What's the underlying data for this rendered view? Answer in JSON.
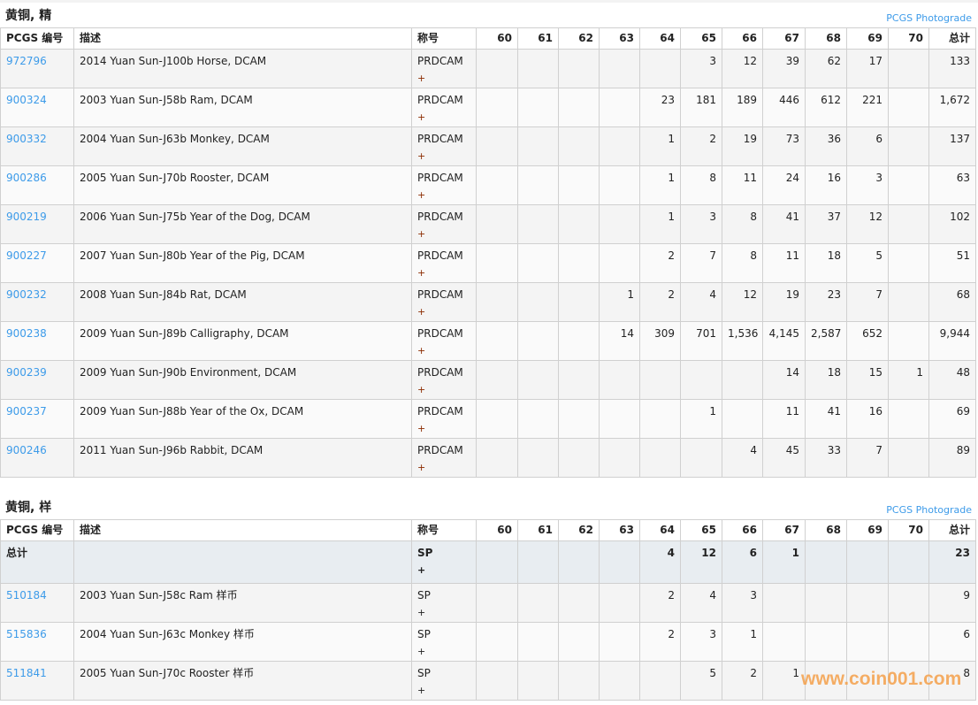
{
  "columns": {
    "pcgs": "PCGS 编号",
    "desc": "描述",
    "desig": "称号",
    "grades": [
      "60",
      "61",
      "62",
      "63",
      "64",
      "65",
      "66",
      "67",
      "68",
      "69",
      "70"
    ],
    "total": "总计"
  },
  "photograde_label": "PCGS Photograde",
  "sections": [
    {
      "title": "黄铜, 精",
      "rows": [
        {
          "pcgs": "972796",
          "desc": "2014 Yuan Sun-J100b Horse, DCAM",
          "desig": "PRDCAM",
          "plus": "+",
          "grades": [
            "",
            "",
            "",
            "",
            "",
            "3",
            "12",
            "39",
            "62",
            "17",
            ""
          ],
          "total": "133"
        },
        {
          "pcgs": "900324",
          "desc": "2003 Yuan Sun-J58b Ram, DCAM",
          "desig": "PRDCAM",
          "plus": "+",
          "grades": [
            "",
            "",
            "",
            "",
            "23",
            "181",
            "189",
            "446",
            "612",
            "221",
            ""
          ],
          "total": "1,672"
        },
        {
          "pcgs": "900332",
          "desc": "2004 Yuan Sun-J63b Monkey, DCAM",
          "desig": "PRDCAM",
          "plus": "+",
          "grades": [
            "",
            "",
            "",
            "",
            "1",
            "2",
            "19",
            "73",
            "36",
            "6",
            ""
          ],
          "total": "137"
        },
        {
          "pcgs": "900286",
          "desc": "2005 Yuan Sun-J70b Rooster, DCAM",
          "desig": "PRDCAM",
          "plus": "+",
          "grades": [
            "",
            "",
            "",
            "",
            "1",
            "8",
            "11",
            "24",
            "16",
            "3",
            ""
          ],
          "total": "63"
        },
        {
          "pcgs": "900219",
          "desc": "2006 Yuan Sun-J75b Year of the Dog, DCAM",
          "desig": "PRDCAM",
          "plus": "+",
          "grades": [
            "",
            "",
            "",
            "",
            "1",
            "3",
            "8",
            "41",
            "37",
            "12",
            ""
          ],
          "total": "102"
        },
        {
          "pcgs": "900227",
          "desc": "2007 Yuan Sun-J80b Year of the Pig, DCAM",
          "desig": "PRDCAM",
          "plus": "+",
          "grades": [
            "",
            "",
            "",
            "",
            "2",
            "7",
            "8",
            "11",
            "18",
            "5",
            ""
          ],
          "total": "51"
        },
        {
          "pcgs": "900232",
          "desc": "2008 Yuan Sun-J84b Rat, DCAM",
          "desig": "PRDCAM",
          "plus": "+",
          "grades": [
            "",
            "",
            "",
            "1",
            "2",
            "4",
            "12",
            "19",
            "23",
            "7",
            ""
          ],
          "total": "68"
        },
        {
          "pcgs": "900238",
          "desc": "2009 Yuan Sun-J89b Calligraphy, DCAM",
          "desig": "PRDCAM",
          "plus": "+",
          "grades": [
            "",
            "",
            "",
            "14",
            "309",
            "701",
            "1,536",
            "4,145",
            "2,587",
            "652",
            ""
          ],
          "total": "9,944"
        },
        {
          "pcgs": "900239",
          "desc": "2009 Yuan Sun-J90b Environment, DCAM",
          "desig": "PRDCAM",
          "plus": "+",
          "grades": [
            "",
            "",
            "",
            "",
            "",
            "",
            "",
            "14",
            "18",
            "15",
            "1"
          ],
          "total": "48"
        },
        {
          "pcgs": "900237",
          "desc": "2009 Yuan Sun-J88b Year of the Ox, DCAM",
          "desig": "PRDCAM",
          "plus": "+",
          "grades": [
            "",
            "",
            "",
            "",
            "",
            "1",
            "",
            "11",
            "41",
            "16",
            ""
          ],
          "total": "69"
        },
        {
          "pcgs": "900246",
          "desc": "2011 Yuan Sun-J96b Rabbit, DCAM",
          "desig": "PRDCAM",
          "plus": "+",
          "grades": [
            "",
            "",
            "",
            "",
            "",
            "",
            "4",
            "45",
            "33",
            "7",
            ""
          ],
          "total": "89"
        }
      ]
    },
    {
      "title": "黄铜, 样",
      "total_row": {
        "pcgs": "总计",
        "desc": "",
        "desig": "SP",
        "plus": "+",
        "grades": [
          "",
          "",
          "",
          "",
          "4",
          "12",
          "6",
          "1",
          "",
          "",
          ""
        ],
        "total": "23"
      },
      "rows": [
        {
          "pcgs": "510184",
          "desc": "2003 Yuan Sun-J58c Ram 样币",
          "desig": "SP",
          "plus": "+",
          "grades": [
            "",
            "",
            "",
            "",
            "2",
            "4",
            "3",
            "",
            "",
            "",
            ""
          ],
          "total": "9"
        },
        {
          "pcgs": "515836",
          "desc": "2004 Yuan Sun-J63c Monkey 样币",
          "desig": "SP",
          "plus": "+",
          "grades": [
            "",
            "",
            "",
            "",
            "2",
            "3",
            "1",
            "",
            "",
            "",
            ""
          ],
          "total": "6"
        },
        {
          "pcgs": "511841",
          "desc": "2005 Yuan Sun-J70c Rooster 样币",
          "desig": "SP",
          "plus": "+",
          "grades": [
            "",
            "",
            "",
            "",
            "",
            "5",
            "2",
            "1",
            "",
            "",
            ""
          ],
          "total": "8"
        }
      ]
    }
  ],
  "watermark": "www.coin001.com"
}
